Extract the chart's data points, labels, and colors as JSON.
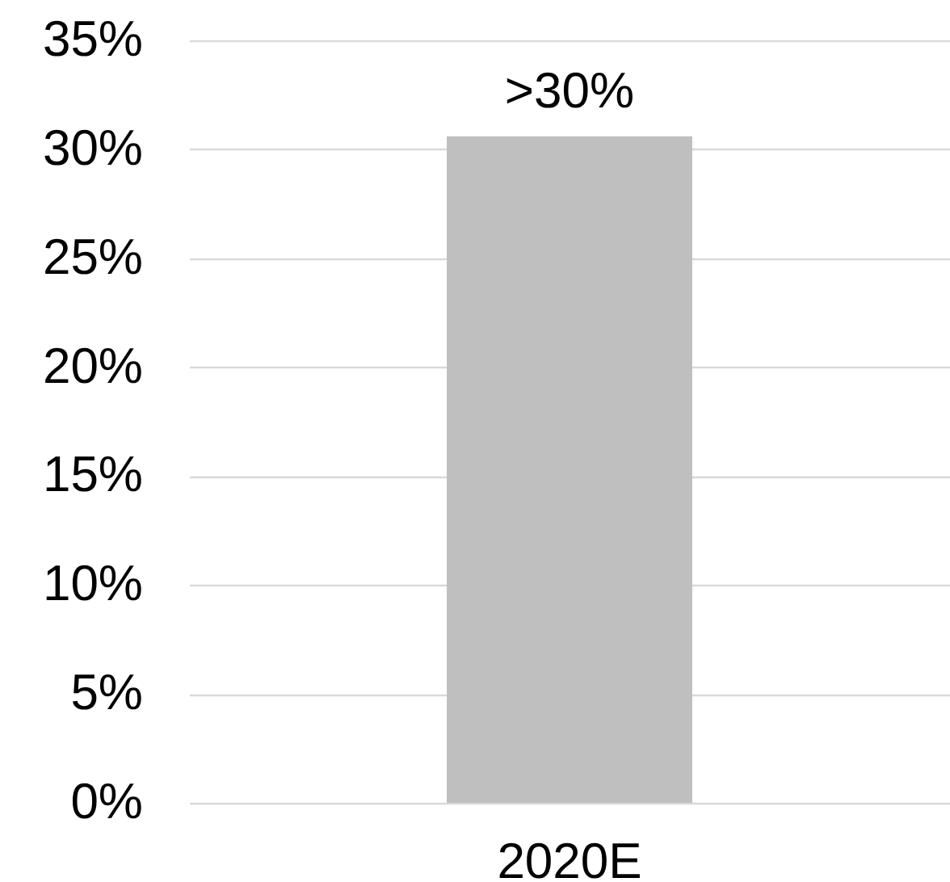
{
  "chart_data": {
    "type": "bar",
    "categories": [
      "2020E"
    ],
    "values": [
      30.6
    ],
    "color": "#bfbfbf",
    "value_labels": [
      ">30%"
    ],
    "ylim": [
      0,
      35
    ],
    "yticks": [
      {
        "value": 0,
        "label": "0%"
      },
      {
        "value": 5,
        "label": "5%"
      },
      {
        "value": 10,
        "label": "10%"
      },
      {
        "value": 15,
        "label": "15%"
      },
      {
        "value": 20,
        "label": "20%"
      },
      {
        "value": 25,
        "label": "25%"
      },
      {
        "value": 30,
        "label": "30%"
      },
      {
        "value": 35,
        "label": "35%"
      }
    ],
    "grid": "y"
  }
}
